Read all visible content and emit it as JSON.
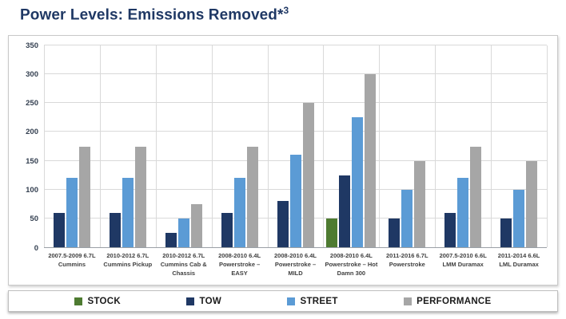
{
  "title": {
    "main": "Power Levels: Emissions Removed*",
    "sup": "3"
  },
  "chart_data": {
    "type": "bar",
    "title": "Power Levels: Emissions Removed*³",
    "xlabel": "",
    "ylabel": "",
    "ylim": [
      0,
      350
    ],
    "yticks": [
      0,
      50,
      100,
      150,
      200,
      250,
      300,
      350
    ],
    "grid": true,
    "legend_position": "bottom",
    "categories": [
      "2007.5-2009 6.7L Cummins",
      "2010-2012 6.7L Cummins Pickup",
      "2010-2012 6.7L Cummins Cab & Chassis",
      "2008-2010 6.4L Powerstroke – EASY",
      "2008-2010 6.4L Powerstroke – MILD",
      "2008-2010 6.4L Powerstroke – Hot Damn 300",
      "2011-2016 6.7L Powerstroke",
      "2007.5-2010 6.6L LMM Duramax",
      "2011-2014 6.6L LML Duramax"
    ],
    "series": [
      {
        "name": "STOCK",
        "color": "#4E7B31",
        "values": [
          0,
          0,
          0,
          0,
          0,
          50,
          0,
          0,
          0
        ]
      },
      {
        "name": "TOW",
        "color": "#1F3864",
        "values": [
          60,
          60,
          25,
          60,
          80,
          125,
          50,
          60,
          50
        ]
      },
      {
        "name": "STREET",
        "color": "#5B9BD5",
        "values": [
          120,
          120,
          50,
          120,
          160,
          225,
          100,
          120,
          100
        ]
      },
      {
        "name": "PERFORMANCE",
        "color": "#A6A6A6",
        "values": [
          175,
          175,
          75,
          175,
          250,
          300,
          150,
          175,
          150
        ]
      }
    ]
  }
}
